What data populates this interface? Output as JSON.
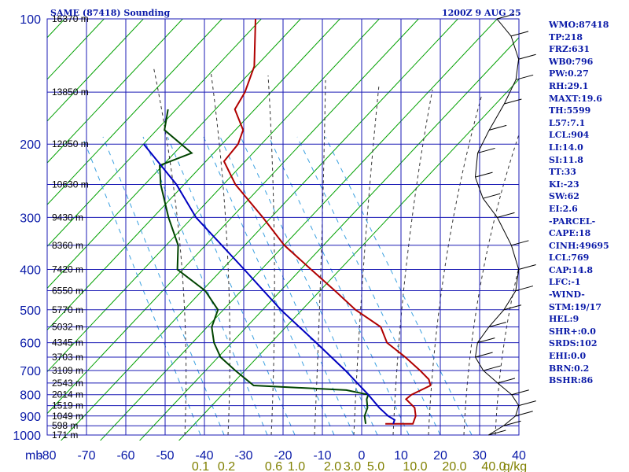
{
  "header": {
    "station": "SAME (87418) Sounding",
    "time": "1200Z  9 AUG 25"
  },
  "parameters": [
    "WMO:87418",
    "TP:218",
    "FRZ:631",
    "WB0:796",
    "PW:0.27",
    "RH:29.1",
    "MAXT:19.6",
    "TH:5599",
    "L57:7.1",
    "LCL:904",
    "LI:14.0",
    "SI:11.8",
    "TT:33",
    "KI:-23",
    "SW:62",
    "EI:2.6",
    "-PARCEL-",
    "CAPE:18",
    "CINH:49695",
    "LCL:769",
    "CAP:14.8",
    "LFC:-1",
    "-WIND-",
    "STM:19/17",
    "HEL:9",
    "SHR+:0.0",
    "SRDS:102",
    "EHI:0.0",
    "BRN:0.2",
    "BSHR:86"
  ],
  "colors": {
    "axis_grid": "#1a1ab4",
    "dry_adiabat": "#00a000",
    "moist_adiabat": "#333333",
    "mixing_ratio": "#3aa0e0",
    "temperature": "#b00000",
    "dewpoint": "#004400",
    "parcel": "#0000c0",
    "labels": "#0a1aa8",
    "mixratio_labels": "#808000"
  },
  "chart_data": {
    "type": "line",
    "title": "SAME (87418) Sounding",
    "diagram": "skew-T log-p",
    "x_axis": {
      "unit_label": "mb",
      "ticks": [
        -80,
        -70,
        -60,
        -50,
        -40,
        -30,
        -20,
        -10,
        0,
        10,
        20,
        30,
        40
      ],
      "range": [
        -80,
        40
      ],
      "units": "°C"
    },
    "y_axis": {
      "scale": "log",
      "ticks": [
        100,
        200,
        300,
        400,
        500,
        600,
        700,
        800,
        900,
        1000
      ],
      "range": [
        1000,
        100
      ],
      "units": "mb"
    },
    "height_labels": [
      {
        "p": 100,
        "text": "16370 m"
      },
      {
        "p": 150,
        "text": "13850 m"
      },
      {
        "p": 200,
        "text": "12050 m"
      },
      {
        "p": 250,
        "text": "10630 m"
      },
      {
        "p": 300,
        "text": "9430 m"
      },
      {
        "p": 350,
        "text": "8360 m"
      },
      {
        "p": 400,
        "text": "7420 m"
      },
      {
        "p": 450,
        "text": "6550 m"
      },
      {
        "p": 500,
        "text": "5770 m"
      },
      {
        "p": 550,
        "text": "5032 m"
      },
      {
        "p": 600,
        "text": "4345 m"
      },
      {
        "p": 650,
        "text": "3703 m"
      },
      {
        "p": 700,
        "text": "3109 m"
      },
      {
        "p": 750,
        "text": "2543 m"
      },
      {
        "p": 800,
        "text": "2014 m"
      },
      {
        "p": 850,
        "text": "1519 m"
      },
      {
        "p": 900,
        "text": "1049 m"
      },
      {
        "p": 950,
        "text": "598 m"
      },
      {
        "p": 1000,
        "text": "171 m"
      }
    ],
    "mixing_ratio_labels": [
      "0.1",
      "0.2",
      "0.6",
      "1.0",
      "2.0",
      "3.0",
      "5.0",
      "10.0",
      "20.0",
      "40.0",
      "g/kg"
    ],
    "mixing_ratio_values": [
      0.1,
      0.2,
      0.6,
      1.0,
      2.0,
      3.0,
      5.0,
      10.0,
      20.0,
      40.0
    ],
    "series": [
      {
        "key": "temperature",
        "points": [
          [
            100,
            -65
          ],
          [
            130,
            -61
          ],
          [
            150,
            -61
          ],
          [
            165,
            -62
          ],
          [
            185,
            -58
          ],
          [
            200,
            -58
          ],
          [
            220,
            -60
          ],
          [
            250,
            -55
          ],
          [
            300,
            -45
          ],
          [
            350,
            -37
          ],
          [
            400,
            -28
          ],
          [
            450,
            -20
          ],
          [
            500,
            -13
          ],
          [
            550,
            -5
          ],
          [
            600,
            -2
          ],
          [
            650,
            4
          ],
          [
            700,
            9
          ],
          [
            735,
            12
          ],
          [
            760,
            13
          ],
          [
            800,
            9
          ],
          [
            820,
            8
          ],
          [
            860,
            11
          ],
          [
            900,
            12
          ],
          [
            940,
            12
          ],
          [
            940,
            5
          ]
        ]
      },
      {
        "key": "dewpoint",
        "points": [
          [
            165,
            -79
          ],
          [
            185,
            -78
          ],
          [
            210,
            -69
          ],
          [
            225,
            -76
          ],
          [
            250,
            -74
          ],
          [
            300,
            -69
          ],
          [
            350,
            -64
          ],
          [
            400,
            -62
          ],
          [
            450,
            -53
          ],
          [
            500,
            -48
          ],
          [
            550,
            -48
          ],
          [
            600,
            -46
          ],
          [
            650,
            -43
          ],
          [
            700,
            -38
          ],
          [
            760,
            -32
          ],
          [
            780,
            -8
          ],
          [
            800,
            -2
          ],
          [
            820,
            -2
          ],
          [
            860,
            -1
          ],
          [
            900,
            -1
          ],
          [
            940,
            0
          ]
        ]
      },
      {
        "key": "parcel",
        "points": [
          [
            940,
            7
          ],
          [
            920,
            7
          ],
          [
            900,
            5
          ],
          [
            860,
            2
          ],
          [
            800,
            -2
          ],
          [
            700,
            -10
          ],
          [
            600,
            -20
          ],
          [
            500,
            -32
          ],
          [
            400,
            -45
          ],
          [
            300,
            -62
          ],
          [
            250,
            -70
          ],
          [
            200,
            -82
          ]
        ]
      }
    ]
  }
}
